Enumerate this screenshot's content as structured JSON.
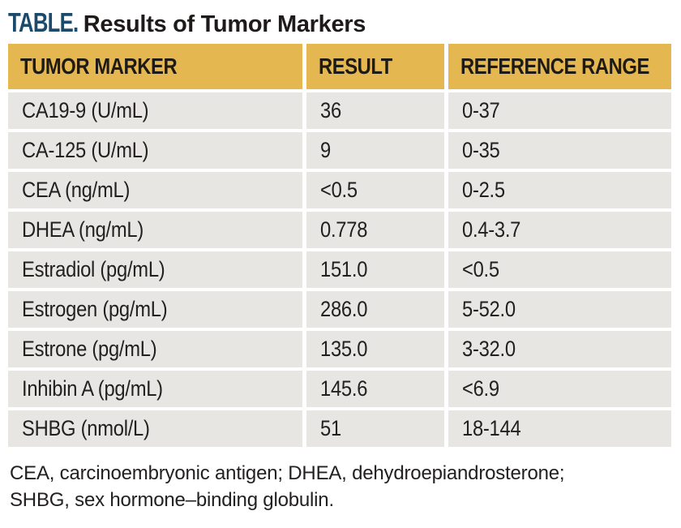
{
  "title": {
    "label": "TABLE.",
    "text": "Results of Tumor Markers"
  },
  "table": {
    "headers": [
      "TUMOR MARKER",
      "RESULT",
      "REFERENCE RANGE"
    ],
    "rows": [
      [
        "CA19-9 (U/mL)",
        "36",
        "0-37"
      ],
      [
        "CA-125 (U/mL)",
        "9",
        "0-35"
      ],
      [
        "CEA (ng/mL)",
        "<0.5",
        "0-2.5"
      ],
      [
        "DHEA (ng/mL)",
        "0.778",
        "0.4-3.7"
      ],
      [
        "Estradiol (pg/mL)",
        "151.0",
        "<0.5"
      ],
      [
        "Estrogen (pg/mL)",
        "286.0",
        "5-52.0"
      ],
      [
        "Estrone (pg/mL)",
        "135.0",
        "3-32.0"
      ],
      [
        "Inhibin A (pg/mL)",
        "145.6",
        "<6.9"
      ],
      [
        "SHBG (nmol/L)",
        "51",
        "18-144"
      ]
    ]
  },
  "footnote_lines": [
    "CEA, carcinoembryonic antigen; DHEA, dehydroepiandrosterone;",
    "SHBG, sex hormone–binding globulin."
  ],
  "colors": {
    "header_bg": "#E4B751",
    "row_bg": "#E7E6E3",
    "title_accent": "#1B4A6B",
    "text": "#232020",
    "background": "#FFFFFF"
  }
}
